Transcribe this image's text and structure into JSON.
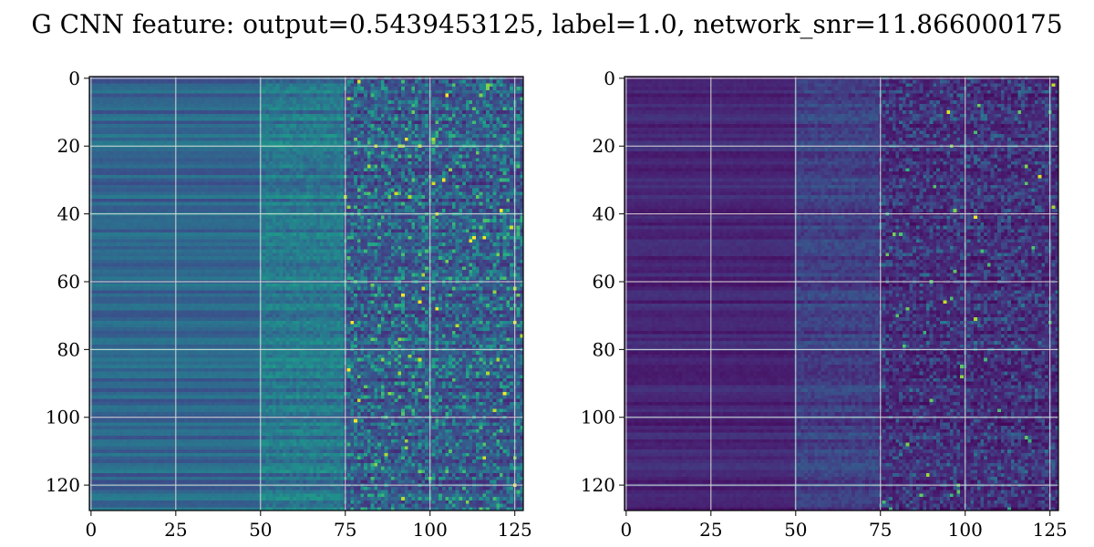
{
  "figure": {
    "title": "G CNN feature: output=0.5439453125, label=1.0, network_snr=11.866000175"
  },
  "chart_data": [
    {
      "type": "heatmap",
      "colormap": "viridis",
      "rows": 128,
      "cols": 128,
      "xlim": [
        0,
        127
      ],
      "ylim": [
        127,
        0
      ],
      "x_ticks": [
        "0",
        "25",
        "50",
        "75",
        "100",
        "125"
      ],
      "y_ticks": [
        "0",
        "20",
        "40",
        "60",
        "80",
        "100",
        "120"
      ],
      "grid": true,
      "description_of_values": "column bands: cols 0-50 smooth (~0.2-0.35), 50-75 moderate (~0.3), 75-127 noisy (~0.1-0.9)",
      "value_range": [
        0,
        1
      ]
    },
    {
      "type": "heatmap",
      "colormap": "viridis",
      "rows": 128,
      "cols": 128,
      "xlim": [
        0,
        127
      ],
      "ylim": [
        127,
        0
      ],
      "x_ticks": [
        "0",
        "25",
        "50",
        "75",
        "100",
        "125"
      ],
      "y_ticks": [
        "0",
        "20",
        "40",
        "60",
        "80",
        "100",
        "120"
      ],
      "grid": true,
      "value_range": [
        0,
        1
      ]
    }
  ],
  "colors": {
    "grid": "#d9d9d9",
    "axis": "#000000"
  }
}
